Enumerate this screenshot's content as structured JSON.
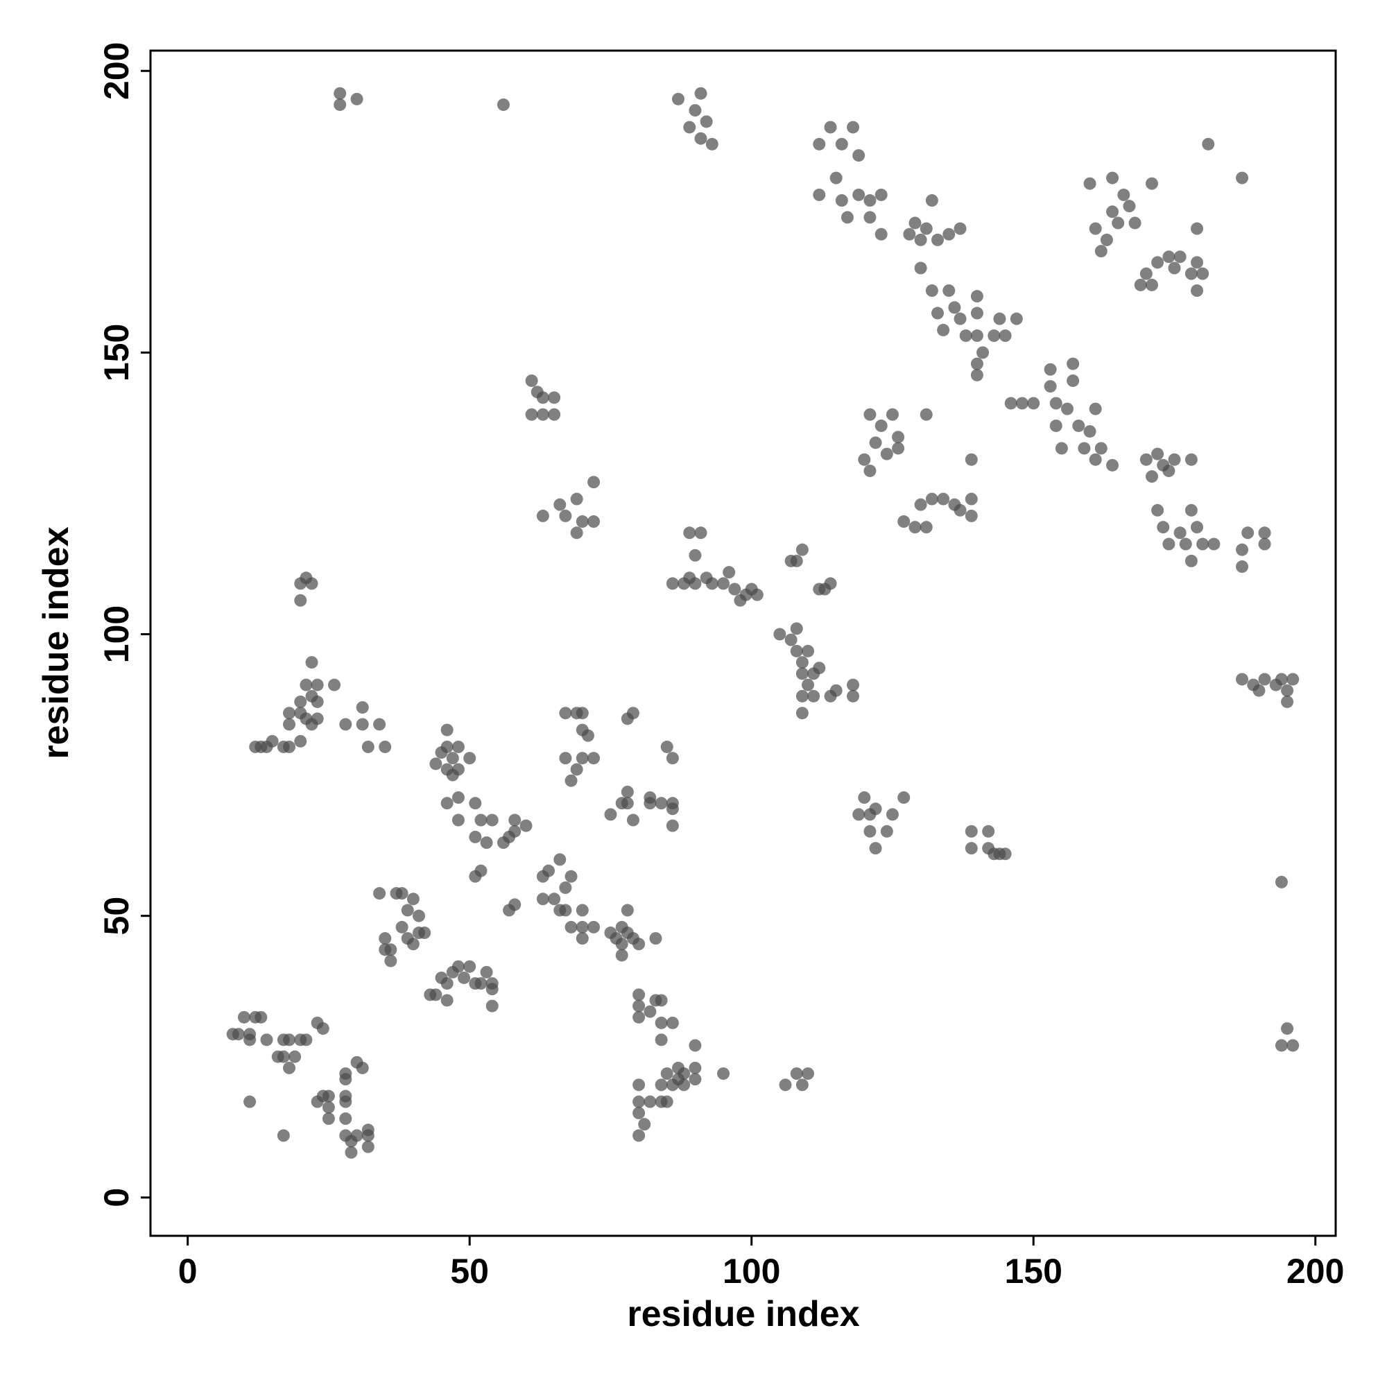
{
  "chart_data": {
    "type": "scatter",
    "xlabel": "residue index",
    "ylabel": "residue index",
    "xlim": [
      -6.6,
      203.6
    ],
    "ylim": [
      -6.8,
      203.6
    ],
    "xticks": [
      0,
      50,
      100,
      150,
      200
    ],
    "yticks": [
      0,
      50,
      100,
      150,
      200
    ],
    "grid": false,
    "color": "#4a4a4a",
    "opacity": 0.7,
    "x": [
      27,
      27,
      30,
      56,
      87,
      89,
      90,
      91,
      92,
      93,
      91,
      112,
      114,
      116,
      118,
      119,
      112,
      115,
      116,
      117,
      119,
      121,
      121,
      123,
      123,
      128,
      129,
      130,
      131,
      132,
      133,
      135,
      137,
      130,
      132,
      133,
      134,
      135,
      136,
      137,
      138,
      140,
      140,
      140,
      140,
      140,
      141,
      143,
      144,
      145,
      147,
      146,
      148,
      150,
      153,
      153,
      154,
      154,
      155,
      156,
      157,
      157,
      158,
      159,
      160,
      161,
      161,
      162,
      164,
      160,
      161,
      162,
      163,
      164,
      164,
      165,
      166,
      167,
      168,
      171,
      169,
      170,
      171,
      172,
      174,
      175,
      176,
      178,
      179,
      179,
      180,
      179,
      181,
      187,
      170,
      171,
      172,
      173,
      174,
      175,
      178,
      172,
      173,
      174,
      176,
      177,
      178,
      178,
      179,
      180,
      182,
      187,
      187,
      188,
      191,
      191,
      187,
      189,
      190,
      191,
      193,
      194,
      195,
      196,
      195,
      194,
      195,
      196,
      194,
      121,
      120,
      121,
      122,
      123,
      124,
      125,
      126,
      126,
      131,
      127,
      129,
      130,
      131,
      132,
      134,
      136,
      137,
      139,
      139,
      139,
      61,
      62,
      63,
      65,
      61,
      63,
      65,
      63,
      66,
      67,
      69,
      70,
      69,
      72,
      72,
      89,
      90,
      91,
      86,
      88,
      89,
      90,
      92,
      93,
      95,
      96,
      97,
      99,
      100,
      101,
      98,
      107,
      108,
      109,
      113,
      114,
      112,
      105,
      107,
      108,
      108,
      109,
      109,
      110,
      110,
      111,
      111,
      112,
      109,
      109,
      114,
      115,
      118,
      118,
      119,
      120,
      121,
      121,
      122,
      122,
      124,
      125,
      127,
      139,
      139,
      142,
      142,
      143,
      144,
      145,
      20,
      21,
      22,
      20,
      22,
      21,
      22,
      23,
      23,
      20,
      21,
      22,
      23,
      20,
      18,
      18,
      20,
      26,
      28,
      31,
      31,
      32,
      34,
      35,
      12,
      13,
      14,
      15,
      17,
      18,
      44,
      45,
      46,
      46,
      47,
      47,
      48,
      48,
      46,
      50,
      46,
      48,
      48,
      51,
      51,
      52,
      53,
      54,
      56,
      57,
      58,
      58,
      60,
      67,
      69,
      70,
      70,
      71,
      72,
      70,
      69,
      67,
      68,
      79,
      78,
      75,
      77,
      78,
      78,
      79,
      82,
      82,
      84,
      86,
      86,
      86,
      86,
      85,
      51,
      52,
      57,
      58,
      63,
      64,
      66,
      63,
      65,
      66,
      67,
      67,
      68,
      70,
      68,
      70,
      72,
      70,
      34,
      37,
      38,
      39,
      40,
      41,
      38,
      39,
      40,
      41,
      42,
      35,
      35,
      36,
      36,
      43,
      44,
      45,
      46,
      46,
      47,
      48,
      49,
      50,
      51,
      52,
      53,
      54,
      54,
      54,
      75,
      76,
      77,
      77,
      78,
      78,
      79,
      80,
      77,
      83,
      80,
      80,
      80,
      82,
      83,
      84,
      84,
      84,
      86,
      90,
      80,
      80,
      80,
      81,
      80,
      82,
      84,
      85,
      84,
      85,
      86,
      87,
      87,
      88,
      88,
      90,
      90,
      95,
      106,
      108,
      109,
      110,
      8,
      9,
      10,
      11,
      12,
      13,
      11,
      14,
      16,
      17,
      17,
      18,
      18,
      19,
      20,
      21,
      23,
      24,
      11,
      23,
      24,
      25,
      25,
      25,
      28,
      28,
      28,
      28,
      30,
      31,
      28,
      28,
      29,
      29,
      30,
      32,
      32,
      32,
      17
    ],
    "values": [
      196,
      194,
      195,
      194,
      195,
      190,
      193,
      196,
      191,
      187,
      188,
      187,
      190,
      187,
      190,
      185,
      178,
      181,
      177,
      174,
      178,
      174,
      177,
      171,
      178,
      171,
      173,
      170,
      172,
      177,
      170,
      171,
      172,
      165,
      161,
      157,
      154,
      161,
      158,
      156,
      153,
      157,
      153,
      160,
      148,
      146,
      150,
      153,
      156,
      153,
      156,
      141,
      141,
      141,
      147,
      144,
      141,
      137,
      133,
      140,
      145,
      148,
      137,
      133,
      136,
      131,
      140,
      133,
      130,
      180,
      172,
      168,
      170,
      181,
      175,
      173,
      178,
      176,
      173,
      180,
      162,
      164,
      162,
      166,
      167,
      165,
      167,
      164,
      166,
      161,
      164,
      172,
      187,
      181,
      131,
      128,
      132,
      130,
      129,
      131,
      131,
      122,
      119,
      116,
      118,
      116,
      113,
      122,
      119,
      116,
      116,
      112,
      115,
      118,
      116,
      118,
      92,
      91,
      90,
      92,
      91,
      92,
      90,
      92,
      88,
      56,
      30,
      27,
      27,
      139,
      131,
      129,
      134,
      137,
      132,
      139,
      133,
      135,
      139,
      120,
      119,
      123,
      119,
      124,
      124,
      123,
      122,
      124,
      121,
      131,
      145,
      143,
      142,
      142,
      139,
      139,
      139,
      121,
      123,
      121,
      124,
      120,
      118,
      120,
      127,
      118,
      114,
      118,
      109,
      109,
      110,
      109,
      110,
      109,
      109,
      111,
      108,
      107,
      108,
      107,
      106,
      113,
      113,
      115,
      108,
      109,
      108,
      100,
      99,
      101,
      97,
      95,
      93,
      91,
      97,
      89,
      93,
      94,
      86,
      89,
      89,
      90,
      89,
      91,
      68,
      71,
      65,
      68,
      62,
      69,
      65,
      68,
      71,
      65,
      62,
      65,
      62,
      61,
      61,
      61,
      109,
      110,
      109,
      106,
      95,
      91,
      89,
      91,
      88,
      88,
      85,
      84,
      85,
      86,
      84,
      86,
      81,
      91,
      84,
      87,
      84,
      80,
      84,
      80,
      80,
      80,
      80,
      81,
      80,
      80,
      77,
      79,
      80,
      76,
      78,
      75,
      76,
      80,
      83,
      78,
      70,
      71,
      67,
      70,
      64,
      67,
      63,
      67,
      63,
      64,
      67,
      65,
      66,
      86,
      86,
      86,
      83,
      82,
      78,
      78,
      76,
      78,
      74,
      86,
      85,
      68,
      70,
      72,
      70,
      67,
      71,
      70,
      70,
      70,
      69,
      66,
      78,
      80,
      57,
      58,
      51,
      52,
      57,
      58,
      60,
      53,
      53,
      51,
      51,
      55,
      57,
      51,
      48,
      48,
      48,
      46,
      54,
      54,
      54,
      51,
      53,
      50,
      48,
      46,
      45,
      47,
      47,
      46,
      44,
      44,
      42,
      36,
      36,
      39,
      38,
      35,
      40,
      41,
      39,
      41,
      38,
      38,
      40,
      38,
      37,
      34,
      47,
      46,
      45,
      48,
      47,
      51,
      46,
      45,
      43,
      46,
      36,
      34,
      32,
      33,
      35,
      35,
      31,
      28,
      31,
      27,
      20,
      17,
      15,
      13,
      11,
      17,
      17,
      17,
      20,
      22,
      20,
      23,
      21,
      20,
      22,
      23,
      21,
      22,
      20,
      22,
      20,
      22,
      29,
      29,
      32,
      29,
      32,
      32,
      28,
      28,
      25,
      25,
      28,
      28,
      23,
      25,
      28,
      28,
      31,
      30,
      17,
      17,
      18,
      18,
      16,
      14,
      17,
      18,
      21,
      22,
      24,
      23,
      14,
      11,
      8,
      10,
      11,
      9,
      11,
      12,
      11
    ]
  }
}
